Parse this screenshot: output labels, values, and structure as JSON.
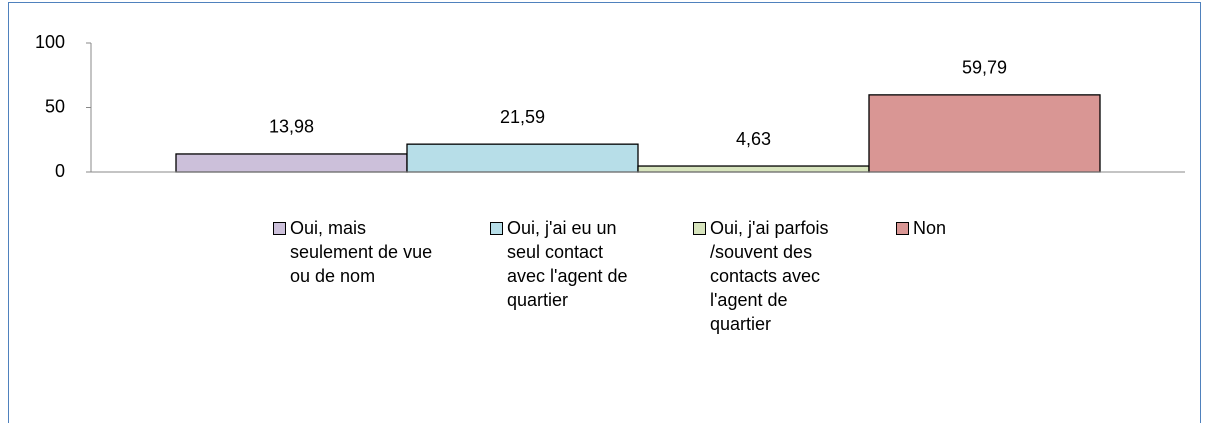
{
  "chart_data": {
    "type": "bar",
    "categories": [
      null
    ],
    "series": [
      {
        "name": "Oui, mais seulement de vue ou de nom",
        "color": "#ccc0da",
        "values": [
          13.98
        ],
        "value_labels": [
          "13,98"
        ]
      },
      {
        "name": "Oui, j'ai eu un seul contact avec l'agent de quartier",
        "color": "#b7dee8",
        "values": [
          21.59
        ],
        "value_labels": [
          "21,59"
        ]
      },
      {
        "name": "Oui, j'ai parfois /souvent des contacts avec l'agent de quartier",
        "color": "#d7e4bd",
        "values": [
          4.63
        ],
        "value_labels": [
          "4,63"
        ]
      },
      {
        "name": "Non",
        "color": "#d99694",
        "values": [
          59.79
        ],
        "value_labels": [
          "59,79"
        ]
      }
    ],
    "ylim": [
      0,
      100
    ],
    "yticks": [
      0,
      50,
      100
    ],
    "grid": false,
    "legend": "bottom"
  }
}
